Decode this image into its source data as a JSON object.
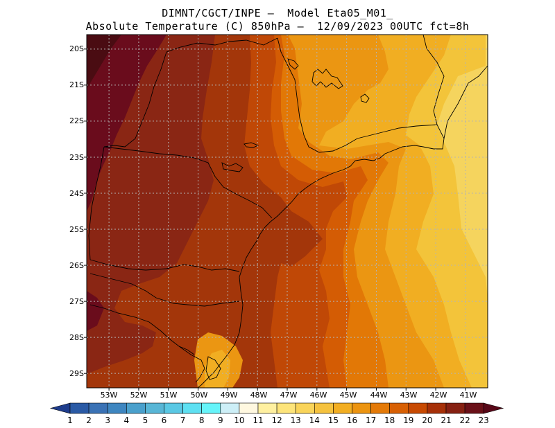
{
  "header": {
    "line1": "DIMNT/CGCT/INPE –  Model Eta05_M01_",
    "line2": "Absolute Temperature (C) 850hPa –  12/09/2023 00UTC fct=8h"
  },
  "map": {
    "lat_labels": [
      "20S",
      "21S",
      "22S",
      "23S",
      "24S",
      "25S",
      "26S",
      "27S",
      "28S",
      "29S"
    ],
    "lon_labels": [
      "53W",
      "52W",
      "51W",
      "50W",
      "49W",
      "48W",
      "47W",
      "46W",
      "45W",
      "44W",
      "43W",
      "42W",
      "41W"
    ],
    "extent": {
      "lon_min": -53.75,
      "lon_max": -40.25,
      "lat_min": -29.4,
      "lat_max": -19.6
    }
  },
  "colorbar": {
    "labels": [
      "1",
      "2",
      "3",
      "4",
      "5",
      "6",
      "7",
      "8",
      "9",
      "10",
      "11",
      "12",
      "13",
      "14",
      "15",
      "16",
      "17",
      "18",
      "19",
      "20",
      "21",
      "22",
      "23"
    ],
    "colors": [
      "#1e3c8c",
      "#2a5aa5",
      "#3a72b5",
      "#3e86c0",
      "#4aa0cc",
      "#58b6d6",
      "#5ac8e4",
      "#5ee0f2",
      "#66f4fa",
      "#cdeff7",
      "#fff8e0",
      "#fff0a0",
      "#fde47a",
      "#f9d45a",
      "#f5c23e",
      "#f2ae22",
      "#ec9410",
      "#e47a08",
      "#d86004",
      "#c84a02",
      "#a63008",
      "#862012",
      "#6a1018",
      "#580818"
    ]
  },
  "colors": {
    "deep": "#6a0c1c",
    "dark_red": "#8a2614",
    "brown": "#a3360a",
    "red_orange": "#c04806",
    "orange_red": "#d45c04",
    "orange": "#e27806",
    "light_orange": "#eb9612",
    "amber": "#f1ae22",
    "yellow_orange": "#f3c43a",
    "pale_yellow": "#f5d45e"
  }
}
